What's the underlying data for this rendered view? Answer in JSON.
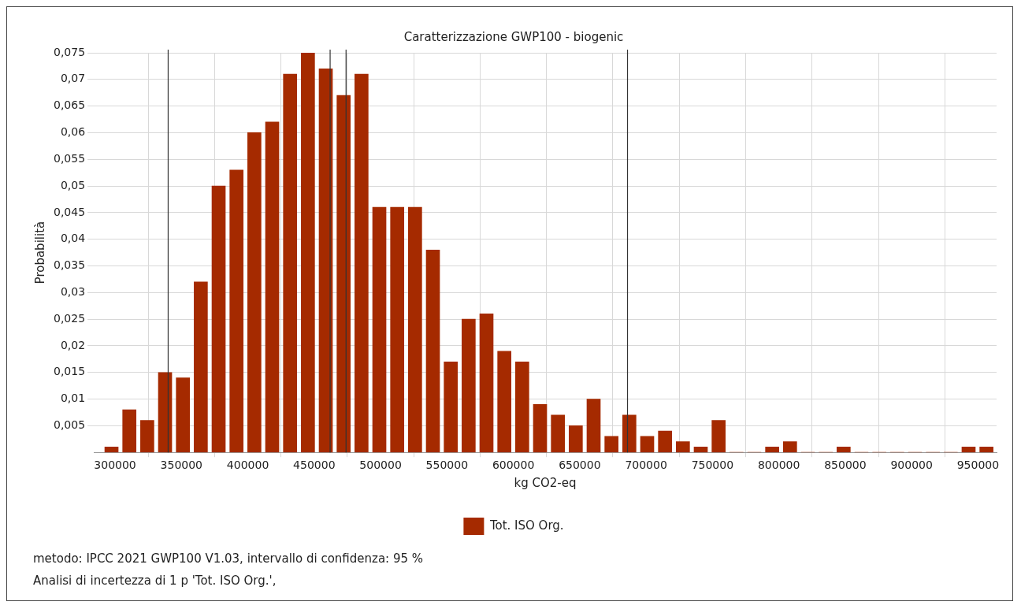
{
  "chart_data": {
    "type": "histogram",
    "title": "Caratterizzazione GWP100 - biogenic",
    "xlabel": "kg CO2-eq",
    "ylabel": "Probabilità",
    "bins": [
      290600,
      304050,
      317500,
      330950,
      344400,
      357850,
      371300,
      384750,
      398200,
      411650,
      425100,
      438550,
      452000,
      465450,
      478900,
      492350,
      505800,
      519250,
      532700,
      546150,
      559600,
      573050,
      586500,
      599950,
      613400,
      626850,
      640300,
      653750,
      667200,
      680650,
      694100,
      707550,
      721000,
      734450,
      747900,
      761350,
      774800,
      788250,
      801700,
      815150,
      828600,
      842050,
      855500,
      868950,
      882400,
      895850,
      909300,
      922750,
      936200,
      949650,
      963100
    ],
    "series": [
      {
        "name": "Tot. ISO Org.",
        "color": "#a52a00",
        "values": [
          0.001,
          0.008,
          0.006,
          0.015,
          0.014,
          0.032,
          0.05,
          0.053,
          0.06,
          0.062,
          0.071,
          0.075,
          0.072,
          0.067,
          0.071,
          0.046,
          0.046,
          0.046,
          0.038,
          0.017,
          0.025,
          0.026,
          0.019,
          0.017,
          0.009,
          0.007,
          0.005,
          0.01,
          0.003,
          0.007,
          0.003,
          0.004,
          0.002,
          0.001,
          0.006,
          0,
          0,
          0.001,
          0.002,
          0,
          0,
          0.001,
          0,
          0,
          0,
          0,
          0,
          0,
          0.001,
          0.001
        ]
      }
    ],
    "xlim": [
      284000,
      964000
    ],
    "xticks": [
      300000,
      350000,
      400000,
      450000,
      500000,
      550000,
      600000,
      650000,
      700000,
      750000,
      800000,
      850000,
      900000,
      950000
    ],
    "ylim": [
      0,
      0.075
    ],
    "yticks": [
      {
        "value": 0.005,
        "label": "0,005"
      },
      {
        "value": 0.01,
        "label": "0,01"
      },
      {
        "value": 0.015,
        "label": "0,015"
      },
      {
        "value": 0.02,
        "label": "0,02"
      },
      {
        "value": 0.025,
        "label": "0,025"
      },
      {
        "value": 0.03,
        "label": "0,03"
      },
      {
        "value": 0.035,
        "label": "0,035"
      },
      {
        "value": 0.04,
        "label": "0,04"
      },
      {
        "value": 0.045,
        "label": "0,045"
      },
      {
        "value": 0.05,
        "label": "0,05"
      },
      {
        "value": 0.055,
        "label": "0,055"
      },
      {
        "value": 0.06,
        "label": "0,06"
      },
      {
        "value": 0.065,
        "label": "0,065"
      },
      {
        "value": 0.07,
        "label": "0,07"
      },
      {
        "value": 0.075,
        "label": "0,075"
      }
    ],
    "ref_lines": [
      {
        "axis": "x",
        "value": 340000,
        "color": "#333333"
      },
      {
        "axis": "x",
        "value": 462000,
        "color": "#333333"
      },
      {
        "axis": "x",
        "value": 474000,
        "color": "#333333"
      },
      {
        "axis": "x",
        "value": 686000,
        "color": "#333333"
      }
    ],
    "grid": true,
    "legend": "bottom",
    "annotations": [
      "metodo: IPCC 2021 GWP100 V1.03, intervallo di confidenza: 95 %",
      "Analisi di incertezza di 1 p 'Tot. ISO Org.',"
    ]
  }
}
